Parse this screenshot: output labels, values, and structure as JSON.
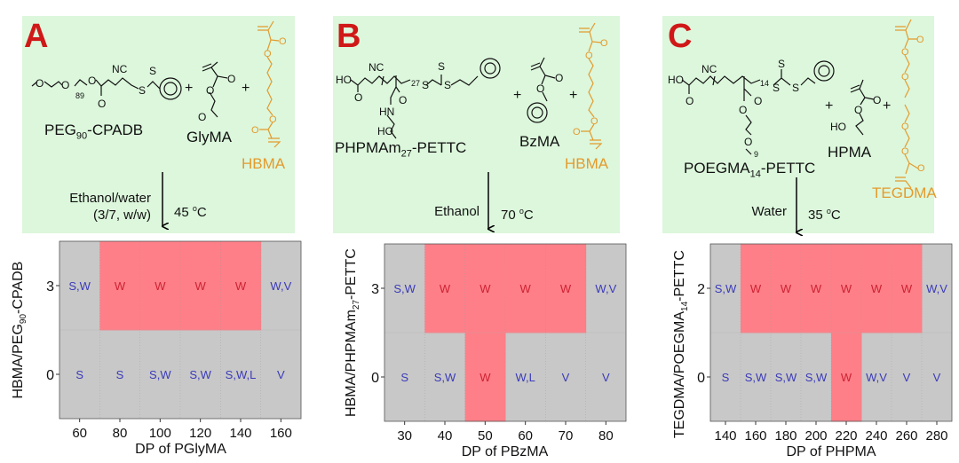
{
  "colors": {
    "panel_bg": "#dcf7dc",
    "letter": "#d01818",
    "crosslinker": "#e39a2d",
    "cell_bg": "#c8c8c8",
    "highlight": "#ff7f88",
    "label_blue": "#3a3aba",
    "label_red": "#cc2233"
  },
  "panels": [
    {
      "letter": "A",
      "macro_cta": {
        "base": "PEG",
        "sub": "90",
        "rest": "-CPADB"
      },
      "monomer": "GlyMA",
      "crosslinker": "HBMA",
      "solvent": [
        "Ethanol/water",
        "(3/7, w/w)"
      ],
      "temperature": {
        "value": "45 ",
        "sup": "o",
        "unit": "C"
      },
      "atoms": [
        "O",
        "O",
        "89",
        "O",
        "O",
        "NC",
        "S",
        "S",
        "O",
        "O",
        "O",
        "+",
        "+",
        "O",
        "O",
        "O",
        "O"
      ]
    },
    {
      "letter": "B",
      "macro_cta": {
        "base": "PHPMAm",
        "sub": "27",
        "rest": "-PETTC"
      },
      "monomer": "BzMA",
      "crosslinker": "HBMA",
      "solvent": [
        "Ethanol"
      ],
      "temperature": {
        "value": "70 ",
        "sup": "o",
        "unit": "C"
      },
      "atoms": [
        "HO",
        "O",
        "NC",
        "27",
        "S",
        "S",
        "S",
        "O",
        "HN",
        "HO",
        "O",
        "O",
        "+",
        "+",
        "O",
        "O",
        "O",
        "O"
      ]
    },
    {
      "letter": "C",
      "macro_cta": {
        "base": "POEGMA",
        "sub": "14",
        "rest": "-PETTC"
      },
      "monomer": "HPMA",
      "crosslinker": "TEGDMA",
      "solvent": [
        "Water"
      ],
      "temperature": {
        "value": "35 ",
        "sup": "o",
        "unit": "C"
      },
      "atoms": [
        "HO",
        "O",
        "NC",
        "14",
        "S",
        "S",
        "S",
        "O",
        "O",
        "O",
        "9",
        "O",
        "O",
        "HO",
        "+",
        "+",
        "O",
        "O",
        "O",
        "O",
        "O",
        "O"
      ]
    }
  ],
  "chart_data": [
    {
      "type": "heatmap",
      "ylabel": {
        "base": "HBMA/PEG",
        "sub": "90",
        "rest": "-CPADB"
      },
      "xlabel": "DP of PGlyMA",
      "x": [
        60,
        80,
        100,
        120,
        140,
        160
      ],
      "y": [
        3,
        0
      ],
      "xlim": [
        50,
        170
      ],
      "ylim": [
        -1.5,
        4.5
      ],
      "row_split": 1.5,
      "cells": [
        [
          "S,W",
          "W",
          "W",
          "W",
          "W",
          "W,V"
        ],
        [
          "S",
          "S",
          "S,W",
          "S,W",
          "S,W,L",
          "V"
        ]
      ],
      "highlight_label": "W"
    },
    {
      "type": "heatmap",
      "ylabel": {
        "base": "HBMA/PHPMAm",
        "sub": "27",
        "rest": "-PETTC"
      },
      "xlabel": "DP of PBzMA",
      "x": [
        30,
        40,
        50,
        60,
        70,
        80
      ],
      "y": [
        3,
        0
      ],
      "xlim": [
        25,
        85
      ],
      "ylim": [
        -1.5,
        4.5
      ],
      "row_split": 1.5,
      "cells": [
        [
          "S,W",
          "W",
          "W",
          "W",
          "W",
          "W,V"
        ],
        [
          "S",
          "S,W",
          "W",
          "W,L",
          "V",
          "V"
        ]
      ],
      "highlight_label": "W"
    },
    {
      "type": "heatmap",
      "ylabel": {
        "base": "TEGDMA/POEGMA",
        "sub": "14",
        "rest": "-PETTC"
      },
      "xlabel": "DP of PHPMA",
      "x": [
        140,
        160,
        180,
        200,
        220,
        240,
        260,
        280
      ],
      "y": [
        2,
        0
      ],
      "xlim": [
        130,
        290
      ],
      "ylim": [
        -1,
        3
      ],
      "row_split": 1,
      "cells": [
        [
          "S,W",
          "W",
          "W",
          "W",
          "W",
          "W",
          "W",
          "W,V"
        ],
        [
          "S",
          "S,W",
          "S,W",
          "S,W",
          "W",
          "W,V",
          "V",
          "V"
        ]
      ],
      "highlight_label": "W"
    }
  ]
}
